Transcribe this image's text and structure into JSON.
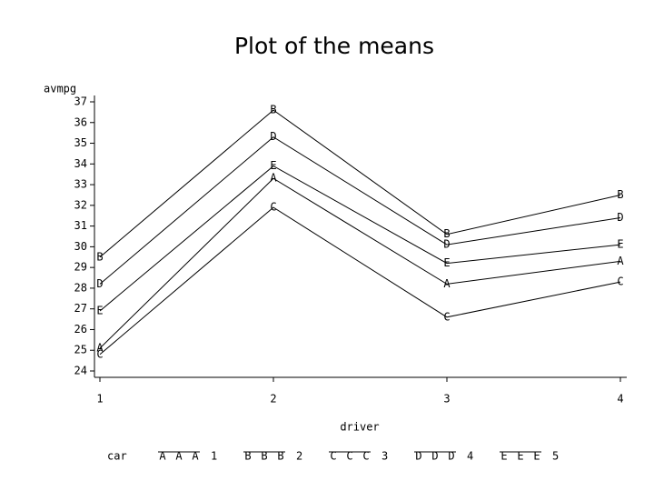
{
  "chart_data": {
    "type": "line",
    "title": "Plot of the means",
    "y_label": "avmpg",
    "x_label": "driver",
    "legend_title": "car",
    "x": [
      1,
      2,
      3,
      4
    ],
    "xlim": [
      1,
      4
    ],
    "xticks": [
      1,
      2,
      3,
      4
    ],
    "ylim": [
      24,
      37
    ],
    "yticks": [
      24,
      25,
      26,
      27,
      28,
      29,
      30,
      31,
      32,
      33,
      34,
      35,
      36,
      37
    ],
    "color": "#000000",
    "series": [
      {
        "name": "1",
        "symbol": "A",
        "values": [
          25.1,
          33.3,
          28.2,
          29.3
        ]
      },
      {
        "name": "2",
        "symbol": "B",
        "values": [
          29.5,
          36.6,
          30.6,
          32.5
        ]
      },
      {
        "name": "3",
        "symbol": "C",
        "values": [
          24.8,
          31.9,
          26.6,
          28.3
        ]
      },
      {
        "name": "4",
        "symbol": "D",
        "values": [
          28.2,
          35.3,
          30.1,
          31.4
        ]
      },
      {
        "name": "5",
        "symbol": "E",
        "values": [
          26.9,
          33.9,
          29.2,
          30.1
        ]
      }
    ]
  }
}
